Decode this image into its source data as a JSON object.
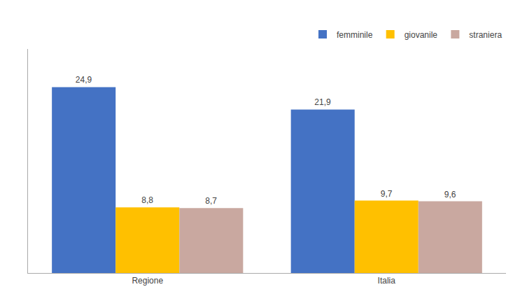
{
  "chart_data": {
    "type": "bar",
    "categories": [
      "Regione",
      "Italia"
    ],
    "series": [
      {
        "name": "femminile",
        "color": "#4472C4",
        "values": [
          24.9,
          21.9
        ],
        "value_labels": [
          "24,9",
          "21,9"
        ]
      },
      {
        "name": "giovanile",
        "color": "#FFC000",
        "values": [
          8.8,
          9.7
        ],
        "value_labels": [
          "8,8",
          "9,7"
        ]
      },
      {
        "name": "straniera",
        "color": "#C9A8A0",
        "values": [
          8.7,
          9.6
        ],
        "value_labels": [
          "8,7",
          "9,6"
        ]
      }
    ],
    "ylim": [
      0,
      30
    ],
    "grid": false,
    "legend": "upper right",
    "data_labels": true,
    "tick_labels": "x"
  }
}
